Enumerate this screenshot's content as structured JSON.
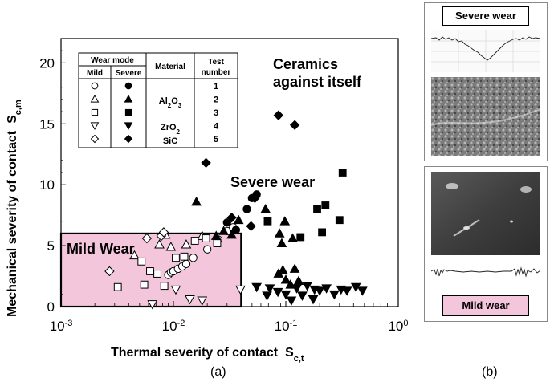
{
  "chart_data": {
    "type": "scatter",
    "title": "",
    "xlabel": "Thermal severity of contact",
    "xlabel_symbol": "S",
    "xlabel_sub": "c,t",
    "ylabel": "Mechanical severity of contact",
    "ylabel_symbol": "S",
    "ylabel_sub": "c,m",
    "xscale": "log",
    "xlim": [
      0.001,
      1
    ],
    "ylim": [
      0,
      22
    ],
    "xtick_values": [
      0.001,
      0.01,
      0.1,
      1
    ],
    "xticks": [
      {
        "base": "10",
        "exp": "-3"
      },
      {
        "base": "10",
        "exp": "-2"
      },
      {
        "base": "10",
        "exp": "-1"
      },
      {
        "base": "10",
        "exp": "0"
      }
    ],
    "yticks": [
      0,
      5,
      10,
      15,
      20
    ],
    "grid": false,
    "annotations": {
      "ceramics_line1": "Ceramics",
      "ceramics_line2": "against itself",
      "severe_wear": "Severe wear",
      "mild_wear": "Mild Wear"
    },
    "mild_region": {
      "x_max": 0.04,
      "y_max": 6,
      "color": "#f4c6dc"
    },
    "legend": {
      "placement": "top-left",
      "header_wear_mode": "Wear mode",
      "header_material": "Material",
      "header_test_line1": "Test",
      "header_test_line2": "number",
      "header_mild": "Mild",
      "header_severe": "Severe",
      "material_al": "Al",
      "material_al_sub": "2",
      "material_al_o": "O",
      "material_al_sub2": "3",
      "material_zr": "ZrO",
      "material_zr_sub": "2",
      "material_sic": "SiC",
      "rows": [
        {
          "test": "1",
          "shape": "circle"
        },
        {
          "test": "2",
          "shape": "triangle-up"
        },
        {
          "test": "3",
          "shape": "square"
        },
        {
          "test": "4",
          "shape": "triangle-down"
        },
        {
          "test": "5",
          "shape": "diamond"
        }
      ]
    },
    "series": [
      {
        "shape": "circle",
        "filled": false,
        "points": [
          [
            0.009,
            2.6
          ],
          [
            0.0095,
            2.8
          ],
          [
            0.01,
            2.9
          ],
          [
            0.011,
            3.1
          ],
          [
            0.012,
            3.3
          ],
          [
            0.013,
            3.5
          ],
          [
            0.015,
            4.0
          ],
          [
            0.02,
            4.7
          ],
          [
            0.025,
            5.5
          ],
          [
            0.03,
            6.2
          ],
          [
            0.034,
            6.5
          ]
        ]
      },
      {
        "shape": "circle",
        "filled": true,
        "points": [
          [
            0.045,
            8.0
          ],
          [
            0.05,
            8.9
          ],
          [
            0.055,
            9.2
          ],
          [
            0.03,
            6.9
          ],
          [
            0.036,
            6.3
          ]
        ]
      },
      {
        "shape": "triangle-up",
        "filled": false,
        "points": [
          [
            0.0045,
            4.2
          ],
          [
            0.0075,
            5.1
          ],
          [
            0.0085,
            5.9
          ],
          [
            0.0095,
            4.9
          ],
          [
            0.013,
            5.1
          ],
          [
            0.018,
            5.8
          ]
        ]
      },
      {
        "shape": "triangle-up",
        "filled": true,
        "points": [
          [
            0.016,
            8.6
          ],
          [
            0.024,
            5.8
          ],
          [
            0.028,
            6.2
          ],
          [
            0.033,
            5.9
          ],
          [
            0.038,
            7.1
          ],
          [
            0.066,
            8.0
          ],
          [
            0.088,
            6.0
          ],
          [
            0.092,
            5.2
          ],
          [
            0.098,
            7.0
          ],
          [
            0.115,
            5.6
          ],
          [
            0.086,
            2.7
          ],
          [
            0.094,
            3.0
          ],
          [
            0.1,
            2.2
          ],
          [
            0.11,
            1.8
          ],
          [
            0.13,
            2.1
          ],
          [
            0.12,
            3.1
          ]
        ]
      },
      {
        "shape": "square",
        "filled": false,
        "points": [
          [
            0.0032,
            1.6
          ],
          [
            0.0052,
            3.7
          ],
          [
            0.0055,
            1.8
          ],
          [
            0.0062,
            2.9
          ],
          [
            0.0072,
            2.7
          ],
          [
            0.0083,
            1.7
          ],
          [
            0.0105,
            4.0
          ],
          [
            0.0125,
            4.1
          ],
          [
            0.0155,
            5.4
          ],
          [
            0.0195,
            5.6
          ],
          [
            0.0245,
            5.2
          ]
        ]
      },
      {
        "shape": "square",
        "filled": true,
        "points": [
          [
            0.069,
            7.0
          ],
          [
            0.135,
            5.7
          ],
          [
            0.19,
            8.0
          ],
          [
            0.225,
            8.3
          ],
          [
            0.21,
            6.1
          ],
          [
            0.3,
            7.1
          ],
          [
            0.32,
            11.0
          ]
        ]
      },
      {
        "shape": "triangle-down",
        "filled": false,
        "points": [
          [
            0.0065,
            0.2
          ],
          [
            0.0105,
            1.4
          ],
          [
            0.014,
            0.6
          ],
          [
            0.018,
            0.5
          ],
          [
            0.0395,
            1.4
          ]
        ]
      },
      {
        "shape": "triangle-down",
        "filled": true,
        "points": [
          [
            0.055,
            1.6
          ],
          [
            0.068,
            0.9
          ],
          [
            0.072,
            1.5
          ],
          [
            0.085,
            1.2
          ],
          [
            0.1,
            1.0
          ],
          [
            0.112,
            0.5
          ],
          [
            0.125,
            1.5
          ],
          [
            0.14,
            0.9
          ],
          [
            0.155,
            1.7
          ],
          [
            0.175,
            0.6
          ],
          [
            0.2,
            1.3
          ],
          [
            0.23,
            1.5
          ],
          [
            0.27,
            1.0
          ],
          [
            0.31,
            1.4
          ],
          [
            0.35,
            1.3
          ],
          [
            0.42,
            1.6
          ],
          [
            0.48,
            1.3
          ],
          [
            0.18,
            1.4
          ]
        ]
      },
      {
        "shape": "diamond",
        "filled": false,
        "points": [
          [
            0.0027,
            2.9
          ],
          [
            0.0058,
            5.6
          ],
          [
            0.0078,
            5.8
          ],
          [
            0.0082,
            6.1
          ]
        ]
      },
      {
        "shape": "diamond",
        "filled": true,
        "points": [
          [
            0.0195,
            11.8
          ],
          [
            0.049,
            6.6
          ],
          [
            0.053,
            8.9
          ],
          [
            0.086,
            15.7
          ],
          [
            0.12,
            14.9
          ],
          [
            0.033,
            7.3
          ]
        ]
      }
    ]
  },
  "side": {
    "severe_label": "Severe wear",
    "mild_label": "Mild wear",
    "caption_a": "(a)",
    "caption_b": "(b)"
  }
}
